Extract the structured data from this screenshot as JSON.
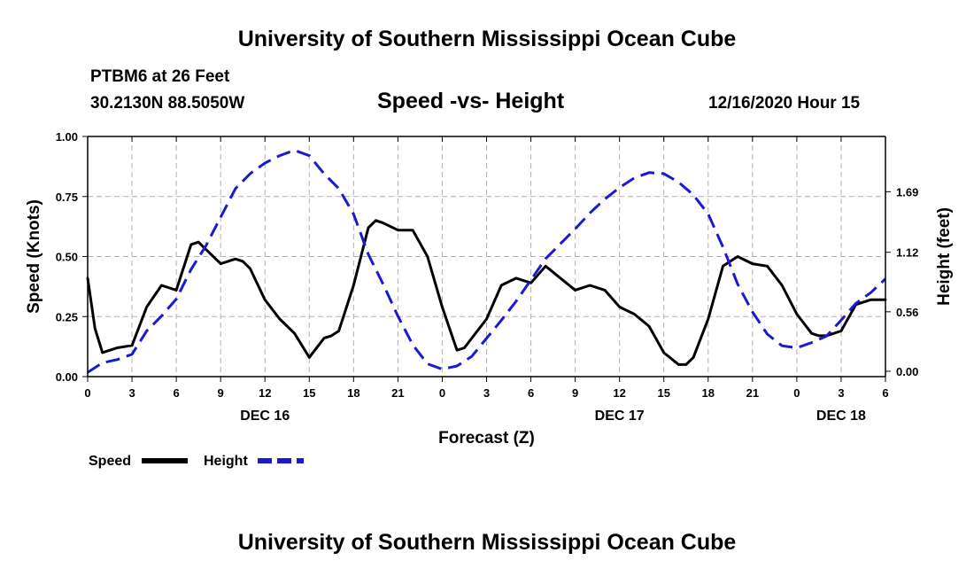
{
  "page": {
    "header_title": "University of Southern Mississippi Ocean Cube",
    "footer_title": "University of Southern Mississippi Ocean Cube",
    "station_name": "PTBM6 at 26 Feet",
    "station_coords": "30.2130N 88.5050W",
    "chart_title": "Speed -vs- Height",
    "issue_time": "12/16/2020 Hour 15"
  },
  "colors": {
    "speed": "#000000",
    "height": "#1a1ad2",
    "grid": "#b0b0b0"
  },
  "chart_data": {
    "type": "line",
    "title": "Speed -vs- Height",
    "xlabel": "Forecast (Z)",
    "ylabel": "Speed (Knots)",
    "y2label": "Height (feet)",
    "x_range": [
      0,
      54
    ],
    "x_ticks": [
      0,
      3,
      6,
      9,
      12,
      15,
      18,
      21,
      24,
      27,
      30,
      33,
      36,
      39,
      42,
      45,
      48,
      51,
      54
    ],
    "x_tick_labels": [
      "0",
      "3",
      "6",
      "9",
      "12",
      "15",
      "18",
      "21",
      "0",
      "3",
      "6",
      "9",
      "12",
      "15",
      "18",
      "21",
      "0",
      "3",
      "6"
    ],
    "day_labels": [
      {
        "x": 12,
        "label": "DEC 16"
      },
      {
        "x": 36,
        "label": "DEC 17"
      },
      {
        "x": 51,
        "label": "DEC 18"
      }
    ],
    "ylim": [
      0,
      1
    ],
    "y_ticks": [
      0,
      0.25,
      0.5,
      0.75,
      1
    ],
    "y_tick_labels": [
      "0.00",
      "0.25",
      "0.50",
      "0.75",
      "1.00"
    ],
    "y2lim": [
      -0.05,
      2.21
    ],
    "y2_ticks": [
      0,
      0.56,
      1.12,
      1.69
    ],
    "y2_tick_labels": [
      "0.00",
      "0.56",
      "1.12",
      "1.69"
    ],
    "grid": true,
    "legend_position": "bottom-left",
    "series": [
      {
        "name": "Speed",
        "axis": "left",
        "style": "solid",
        "x": [
          0,
          0.5,
          1,
          2,
          3,
          4,
          5,
          6,
          7,
          7.5,
          8,
          9,
          10,
          10.5,
          11,
          12,
          13,
          14,
          15,
          16,
          16.5,
          17,
          18,
          19,
          19.5,
          20,
          21,
          22,
          23,
          24,
          25,
          25.5,
          26,
          27,
          28,
          29,
          30,
          31,
          32,
          33,
          33.5,
          34,
          35,
          36,
          37,
          38,
          39,
          40,
          40.5,
          41,
          42,
          43,
          44,
          45,
          46,
          47,
          48,
          49,
          49.5,
          50,
          51,
          52,
          53,
          54
        ],
        "values": [
          0.41,
          0.2,
          0.1,
          0.12,
          0.13,
          0.29,
          0.38,
          0.36,
          0.55,
          0.56,
          0.53,
          0.47,
          0.49,
          0.48,
          0.45,
          0.32,
          0.24,
          0.18,
          0.08,
          0.16,
          0.17,
          0.19,
          0.38,
          0.62,
          0.65,
          0.64,
          0.61,
          0.61,
          0.5,
          0.29,
          0.11,
          0.12,
          0.16,
          0.24,
          0.38,
          0.41,
          0.39,
          0.46,
          0.41,
          0.36,
          0.37,
          0.38,
          0.36,
          0.29,
          0.26,
          0.21,
          0.1,
          0.05,
          0.05,
          0.08,
          0.24,
          0.46,
          0.5,
          0.47,
          0.46,
          0.38,
          0.26,
          0.18,
          0.17,
          0.17,
          0.19,
          0.3,
          0.32,
          0.32
        ]
      },
      {
        "name": "Height",
        "axis": "right",
        "style": "dashed",
        "x": [
          0,
          1,
          2,
          3,
          4,
          5,
          6,
          7,
          8,
          9,
          10,
          11,
          12,
          13,
          14,
          15,
          16,
          17,
          18,
          19,
          20,
          21,
          22,
          23,
          24,
          25,
          26,
          27,
          28,
          29,
          30,
          31,
          32,
          33,
          34,
          35,
          36,
          37,
          38,
          39,
          40,
          41,
          42,
          43,
          44,
          45,
          46,
          47,
          48,
          49,
          50,
          51,
          52,
          53,
          54
        ],
        "values": [
          -0.01,
          0.08,
          0.11,
          0.16,
          0.38,
          0.52,
          0.68,
          0.96,
          1.18,
          1.45,
          1.72,
          1.86,
          1.96,
          2.03,
          2.08,
          2.03,
          1.86,
          1.72,
          1.48,
          1.1,
          0.82,
          0.52,
          0.25,
          0.07,
          0.02,
          0.05,
          0.14,
          0.31,
          0.48,
          0.66,
          0.86,
          1.06,
          1.2,
          1.34,
          1.49,
          1.62,
          1.73,
          1.82,
          1.87,
          1.86,
          1.78,
          1.66,
          1.48,
          1.17,
          0.82,
          0.56,
          0.35,
          0.24,
          0.22,
          0.27,
          0.33,
          0.48,
          0.64,
          0.74,
          0.87
        ]
      }
    ]
  }
}
